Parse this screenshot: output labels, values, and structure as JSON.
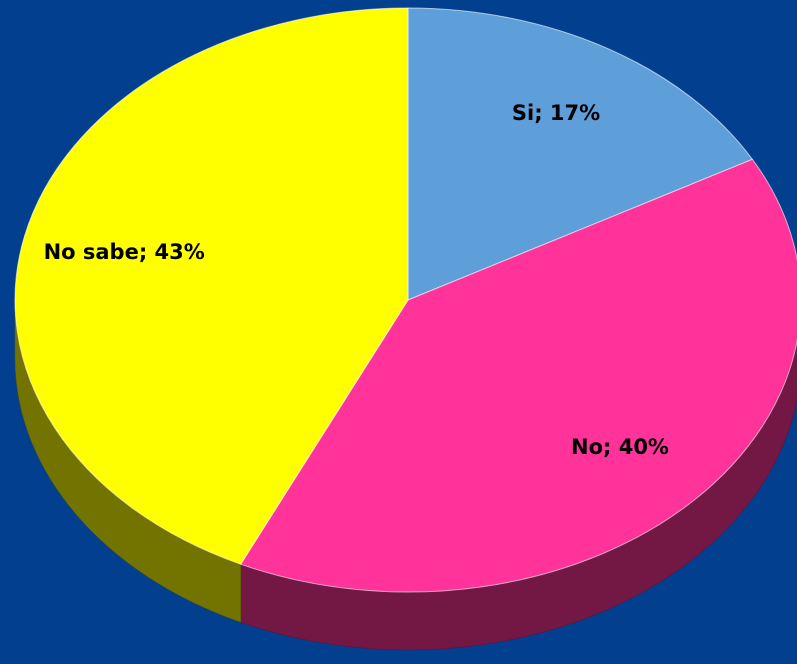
{
  "chart_data": {
    "type": "pie",
    "categories": [
      "Si",
      "No",
      "No sabe"
    ],
    "values": [
      17,
      40,
      43
    ],
    "value_labels": [
      "Si; 17%",
      "No; 40%",
      "No sabe; 43%"
    ],
    "colors": [
      "#5f9fd9",
      "#ff3399",
      "#ffff00"
    ],
    "background": "#023f8f"
  }
}
